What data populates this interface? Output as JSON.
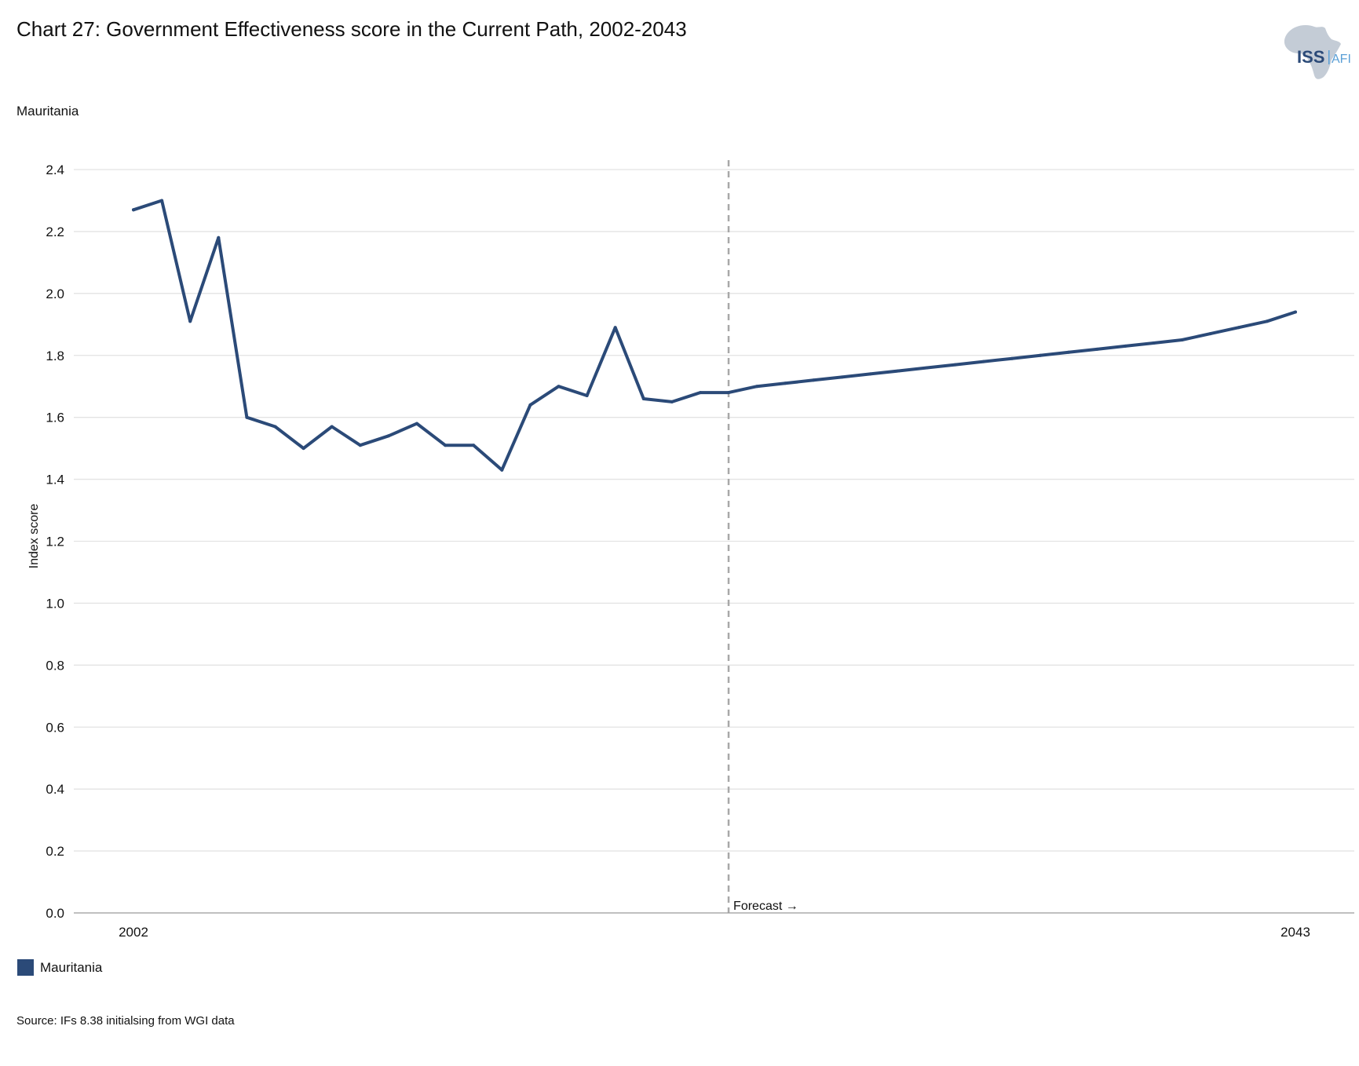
{
  "header": {
    "title": "Chart 27: Government Effectiveness score in the Current Path, 2002-2043",
    "subtitle": "Mauritania"
  },
  "logo": {
    "text_main": "ISS",
    "text_side": "AFI"
  },
  "legend": {
    "label": "Mauritania"
  },
  "source": "Source: IFs 8.38 initialsing from WGI data",
  "colors": {
    "series": "#2b4a78",
    "grid": "#e3e3e3",
    "forecast_line": "#a8a8a8",
    "logo_map": "#c4ccd6"
  },
  "chart_data": {
    "type": "line",
    "title": "Chart 27: Government Effectiveness score in the Current Path, 2002-2043",
    "xlabel": "",
    "ylabel": "Index score",
    "xlim": [
      2002,
      2043
    ],
    "ylim": [
      0,
      2.4
    ],
    "y_ticks": [
      "0.0",
      "0.2",
      "0.4",
      "0.6",
      "0.8",
      "1.0",
      "1.2",
      "1.4",
      "1.6",
      "1.8",
      "2.0",
      "2.2",
      "2.4"
    ],
    "x_tick_labels": [
      "2002",
      "2043"
    ],
    "grid": true,
    "forecast_start": 2023,
    "forecast_label": "Forecast →",
    "series": [
      {
        "name": "Mauritania",
        "color": "#2b4a78",
        "x": [
          2002,
          2003,
          2004,
          2005,
          2006,
          2007,
          2008,
          2009,
          2010,
          2011,
          2012,
          2013,
          2014,
          2015,
          2016,
          2017,
          2018,
          2019,
          2020,
          2021,
          2022,
          2023,
          2024,
          2025,
          2026,
          2027,
          2028,
          2029,
          2030,
          2031,
          2032,
          2033,
          2034,
          2035,
          2036,
          2037,
          2038,
          2039,
          2040,
          2041,
          2042,
          2043
        ],
        "y": [
          2.27,
          2.3,
          1.91,
          2.18,
          1.6,
          1.57,
          1.5,
          1.57,
          1.51,
          1.54,
          1.58,
          1.51,
          1.51,
          1.43,
          1.64,
          1.7,
          1.67,
          1.89,
          1.66,
          1.65,
          1.68,
          1.68,
          1.7,
          1.71,
          1.72,
          1.73,
          1.74,
          1.75,
          1.76,
          1.77,
          1.78,
          1.79,
          1.8,
          1.81,
          1.82,
          1.83,
          1.84,
          1.85,
          1.87,
          1.89,
          1.91,
          1.94
        ]
      }
    ]
  }
}
